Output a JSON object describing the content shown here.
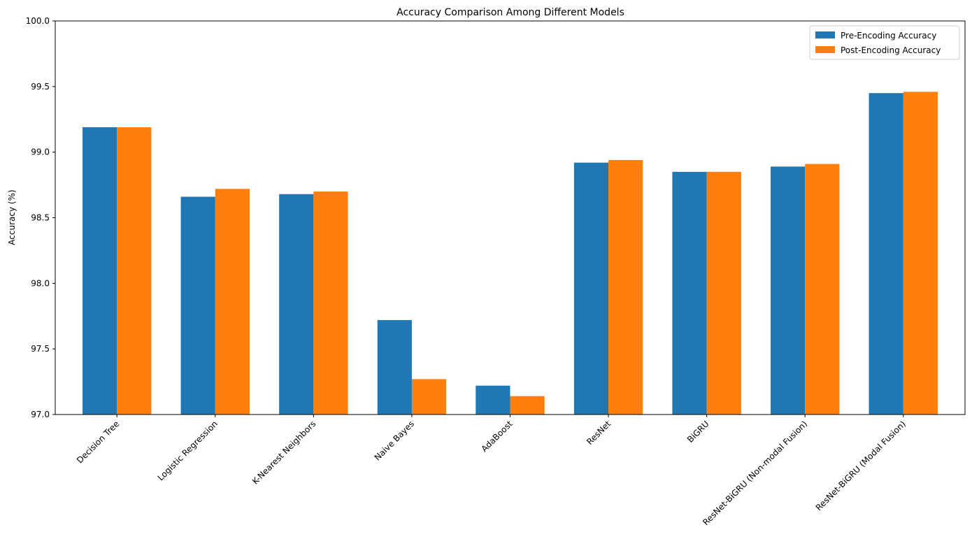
{
  "chart_data": {
    "type": "bar",
    "title": "Accuracy Comparison Among Different Models",
    "xlabel": "",
    "ylabel": "Accuracy (%)",
    "ylim": [
      97.0,
      100.0
    ],
    "yticks": [
      "97.0",
      "97.5",
      "98.0",
      "98.5",
      "99.0",
      "99.5",
      "100.0"
    ],
    "categories": [
      "Decision Tree",
      "Logistic Regression",
      "K-Nearest Neighbors",
      "Naive Bayes",
      "AdaBoost",
      "ResNet",
      "BiGRU",
      "ResNet-BiGRU (Non-modal Fusion)",
      "ResNet-BiGRU (Modal Fusion)"
    ],
    "series": [
      {
        "name": "Pre-Encoding Accuracy",
        "color": "#1f77b4",
        "values": [
          99.19,
          98.66,
          98.68,
          97.72,
          97.22,
          98.92,
          98.85,
          98.89,
          99.45
        ]
      },
      {
        "name": "Post-Encoding Accuracy",
        "color": "#ff7f0e",
        "values": [
          99.19,
          98.72,
          98.7,
          97.27,
          97.14,
          98.94,
          98.85,
          98.91,
          99.46
        ]
      }
    ],
    "legend_position": "top-right",
    "grid": false
  }
}
